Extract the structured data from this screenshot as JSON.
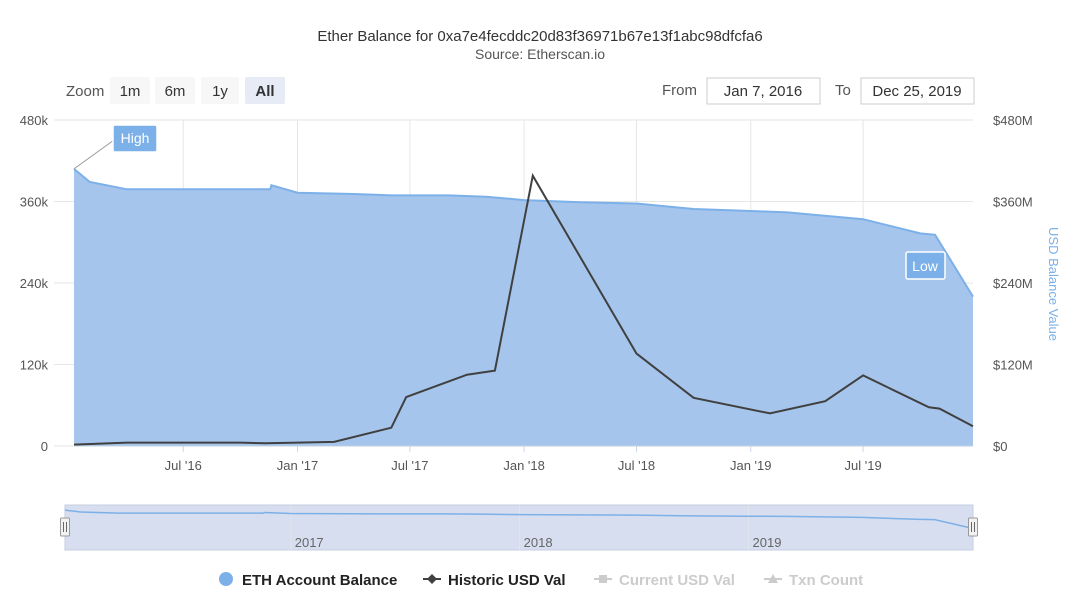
{
  "title": "Ether Balance for 0xa7e4fecddc20d83f36971b67e13f1abc98dfcfa6",
  "subtitle": "Source: Etherscan.io",
  "zoom": {
    "label": "Zoom",
    "buttons": [
      "1m",
      "6m",
      "1y",
      "All"
    ],
    "active": "All"
  },
  "range": {
    "from_label": "From",
    "from_value": "Jan 7, 2016",
    "to_label": "To",
    "to_value": "Dec 25, 2019"
  },
  "colors": {
    "area_fill": "#a6c5ec",
    "area_line": "#7cb0e8",
    "usd_line": "#404040",
    "grid": "#e6e6e6",
    "navigator_bg": "#d7def0",
    "inactive_legend": "#cccccc"
  },
  "chart_data": {
    "type": "area",
    "y_left": {
      "ticks": [
        "0",
        "120k",
        "240k",
        "360k",
        "480k"
      ],
      "min": 0,
      "max": 480000
    },
    "y_right": {
      "label": "USD Balance Value",
      "ticks": [
        "$0",
        "$120M",
        "$240M",
        "$360M",
        "$480M"
      ],
      "min": 0,
      "max": 480000000
    },
    "x_ticks": [
      {
        "label": "Jul '16",
        "date": "2016-07-01"
      },
      {
        "label": "Jan '17",
        "date": "2017-01-01"
      },
      {
        "label": "Jul '17",
        "date": "2017-07-01"
      },
      {
        "label": "Jan '18",
        "date": "2018-01-01"
      },
      {
        "label": "Jul '18",
        "date": "2018-07-01"
      },
      {
        "label": "Jan '19",
        "date": "2019-01-01"
      },
      {
        "label": "Jul '19",
        "date": "2019-07-01"
      }
    ],
    "navigator_ticks": [
      {
        "label": "2017",
        "date": "2017-01-01"
      },
      {
        "label": "2018",
        "date": "2018-01-01"
      },
      {
        "label": "2019",
        "date": "2019-01-01"
      }
    ],
    "x_range": [
      "2016-01-07",
      "2019-12-25"
    ],
    "series": [
      {
        "name": "ETH Account Balance",
        "axis": "left",
        "type": "area",
        "points": [
          [
            "2016-01-07",
            408000
          ],
          [
            "2016-02-01",
            389000
          ],
          [
            "2016-04-01",
            378000
          ],
          [
            "2016-07-01",
            378000
          ],
          [
            "2016-10-01",
            378000
          ],
          [
            "2016-11-18",
            378000
          ],
          [
            "2016-11-20",
            384000
          ],
          [
            "2016-12-01",
            381000
          ],
          [
            "2017-01-01",
            373000
          ],
          [
            "2017-04-01",
            371000
          ],
          [
            "2017-06-01",
            369000
          ],
          [
            "2017-09-01",
            369000
          ],
          [
            "2017-11-01",
            367000
          ],
          [
            "2018-01-01",
            362000
          ],
          [
            "2018-04-01",
            359000
          ],
          [
            "2018-07-01",
            357000
          ],
          [
            "2018-10-01",
            349000
          ],
          [
            "2019-01-01",
            346000
          ],
          [
            "2019-03-01",
            344000
          ],
          [
            "2019-07-01",
            334000
          ],
          [
            "2019-10-01",
            313000
          ],
          [
            "2019-10-25",
            311000
          ],
          [
            "2019-12-25",
            220000
          ]
        ]
      },
      {
        "name": "Historic USD Val",
        "axis": "right",
        "type": "line",
        "points": [
          [
            "2016-01-07",
            2000000
          ],
          [
            "2016-04-01",
            5000000
          ],
          [
            "2016-07-01",
            5000000
          ],
          [
            "2016-10-01",
            5000000
          ],
          [
            "2016-11-10",
            4000000
          ],
          [
            "2017-01-01",
            5000000
          ],
          [
            "2017-03-01",
            6000000
          ],
          [
            "2017-06-01",
            27000000
          ],
          [
            "2017-06-25",
            72000000
          ],
          [
            "2017-10-01",
            105000000
          ],
          [
            "2017-11-15",
            111000000
          ],
          [
            "2018-01-15",
            398000000
          ],
          [
            "2018-07-01",
            136000000
          ],
          [
            "2018-10-01",
            71000000
          ],
          [
            "2019-02-01",
            48000000
          ],
          [
            "2019-05-01",
            66000000
          ],
          [
            "2019-07-01",
            104000000
          ],
          [
            "2019-10-15",
            57000000
          ],
          [
            "2019-11-01",
            55000000
          ],
          [
            "2019-12-25",
            29000000
          ]
        ]
      }
    ],
    "annotations": [
      {
        "text": "High",
        "date": "2016-01-07",
        "value": 408000
      },
      {
        "text": "Low",
        "date": "2019-12-25",
        "value": 220000
      }
    ],
    "legend": [
      {
        "name": "ETH Account Balance",
        "symbol": "circle",
        "active": true
      },
      {
        "name": "Historic USD Val",
        "symbol": "line-diamond",
        "active": true
      },
      {
        "name": "Current USD Val",
        "symbol": "line-square",
        "active": false
      },
      {
        "name": "Txn Count",
        "symbol": "line-triangle",
        "active": false
      }
    ]
  }
}
